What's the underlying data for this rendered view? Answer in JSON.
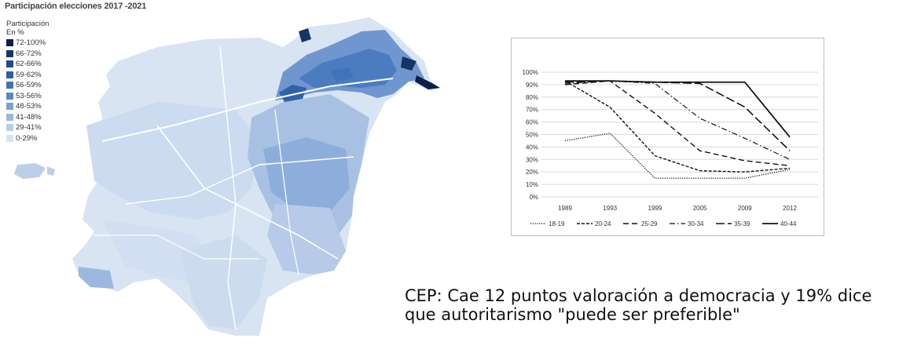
{
  "map": {
    "title": "Participación elecciones 2017 -2021",
    "legend_title_line1": "Participación",
    "legend_title_line2": "En %",
    "legend": [
      {
        "label": "72-100%",
        "color": "#0b1f48"
      },
      {
        "label": "66-72%",
        "color": "#163466"
      },
      {
        "label": "62-66%",
        "color": "#1f4b8c"
      },
      {
        "label": "59-62%",
        "color": "#2b5fa8"
      },
      {
        "label": "56-59%",
        "color": "#3f74bb"
      },
      {
        "label": "53-56%",
        "color": "#5a89c8"
      },
      {
        "label": "48-53%",
        "color": "#7aa1d4"
      },
      {
        "label": "41-48%",
        "color": "#9bb8df"
      },
      {
        "label": "29-41%",
        "color": "#bccfe9"
      },
      {
        "label": "0-29%",
        "color": "#d9e4f3"
      }
    ]
  },
  "chart_data": {
    "type": "line",
    "categories": [
      "1989",
      "1993",
      "1999",
      "2005",
      "2009",
      "2012"
    ],
    "ylim": [
      0,
      100
    ],
    "y_ticks": [
      "0%",
      "10%",
      "20%",
      "30%",
      "40%",
      "50%",
      "60%",
      "70%",
      "80%",
      "90%",
      "100%"
    ],
    "grid": true,
    "legend_position": "bottom",
    "series": [
      {
        "name": "18-19",
        "dash": "dotted",
        "values": [
          45,
          51,
          15,
          15,
          15,
          22
        ]
      },
      {
        "name": "20-24",
        "dash": "dash-short",
        "values": [
          93,
          72,
          33,
          21,
          20,
          23
        ]
      },
      {
        "name": "25-29",
        "dash": "dash-long",
        "values": [
          90,
          93,
          67,
          37,
          29,
          25
        ]
      },
      {
        "name": "30-34",
        "dash": "dash-dot",
        "values": [
          91,
          93,
          91,
          63,
          47,
          30
        ]
      },
      {
        "name": "35-39",
        "dash": "long-dash",
        "values": [
          92,
          93,
          92,
          91,
          72,
          37
        ]
      },
      {
        "name": "40-44",
        "dash": "solid",
        "values": [
          93,
          93,
          92,
          92,
          92,
          48
        ]
      }
    ]
  },
  "headline": "CEP: Cae 12 puntos valoración a democracia y 19% dice que autoritarismo \"puede ser preferible\""
}
